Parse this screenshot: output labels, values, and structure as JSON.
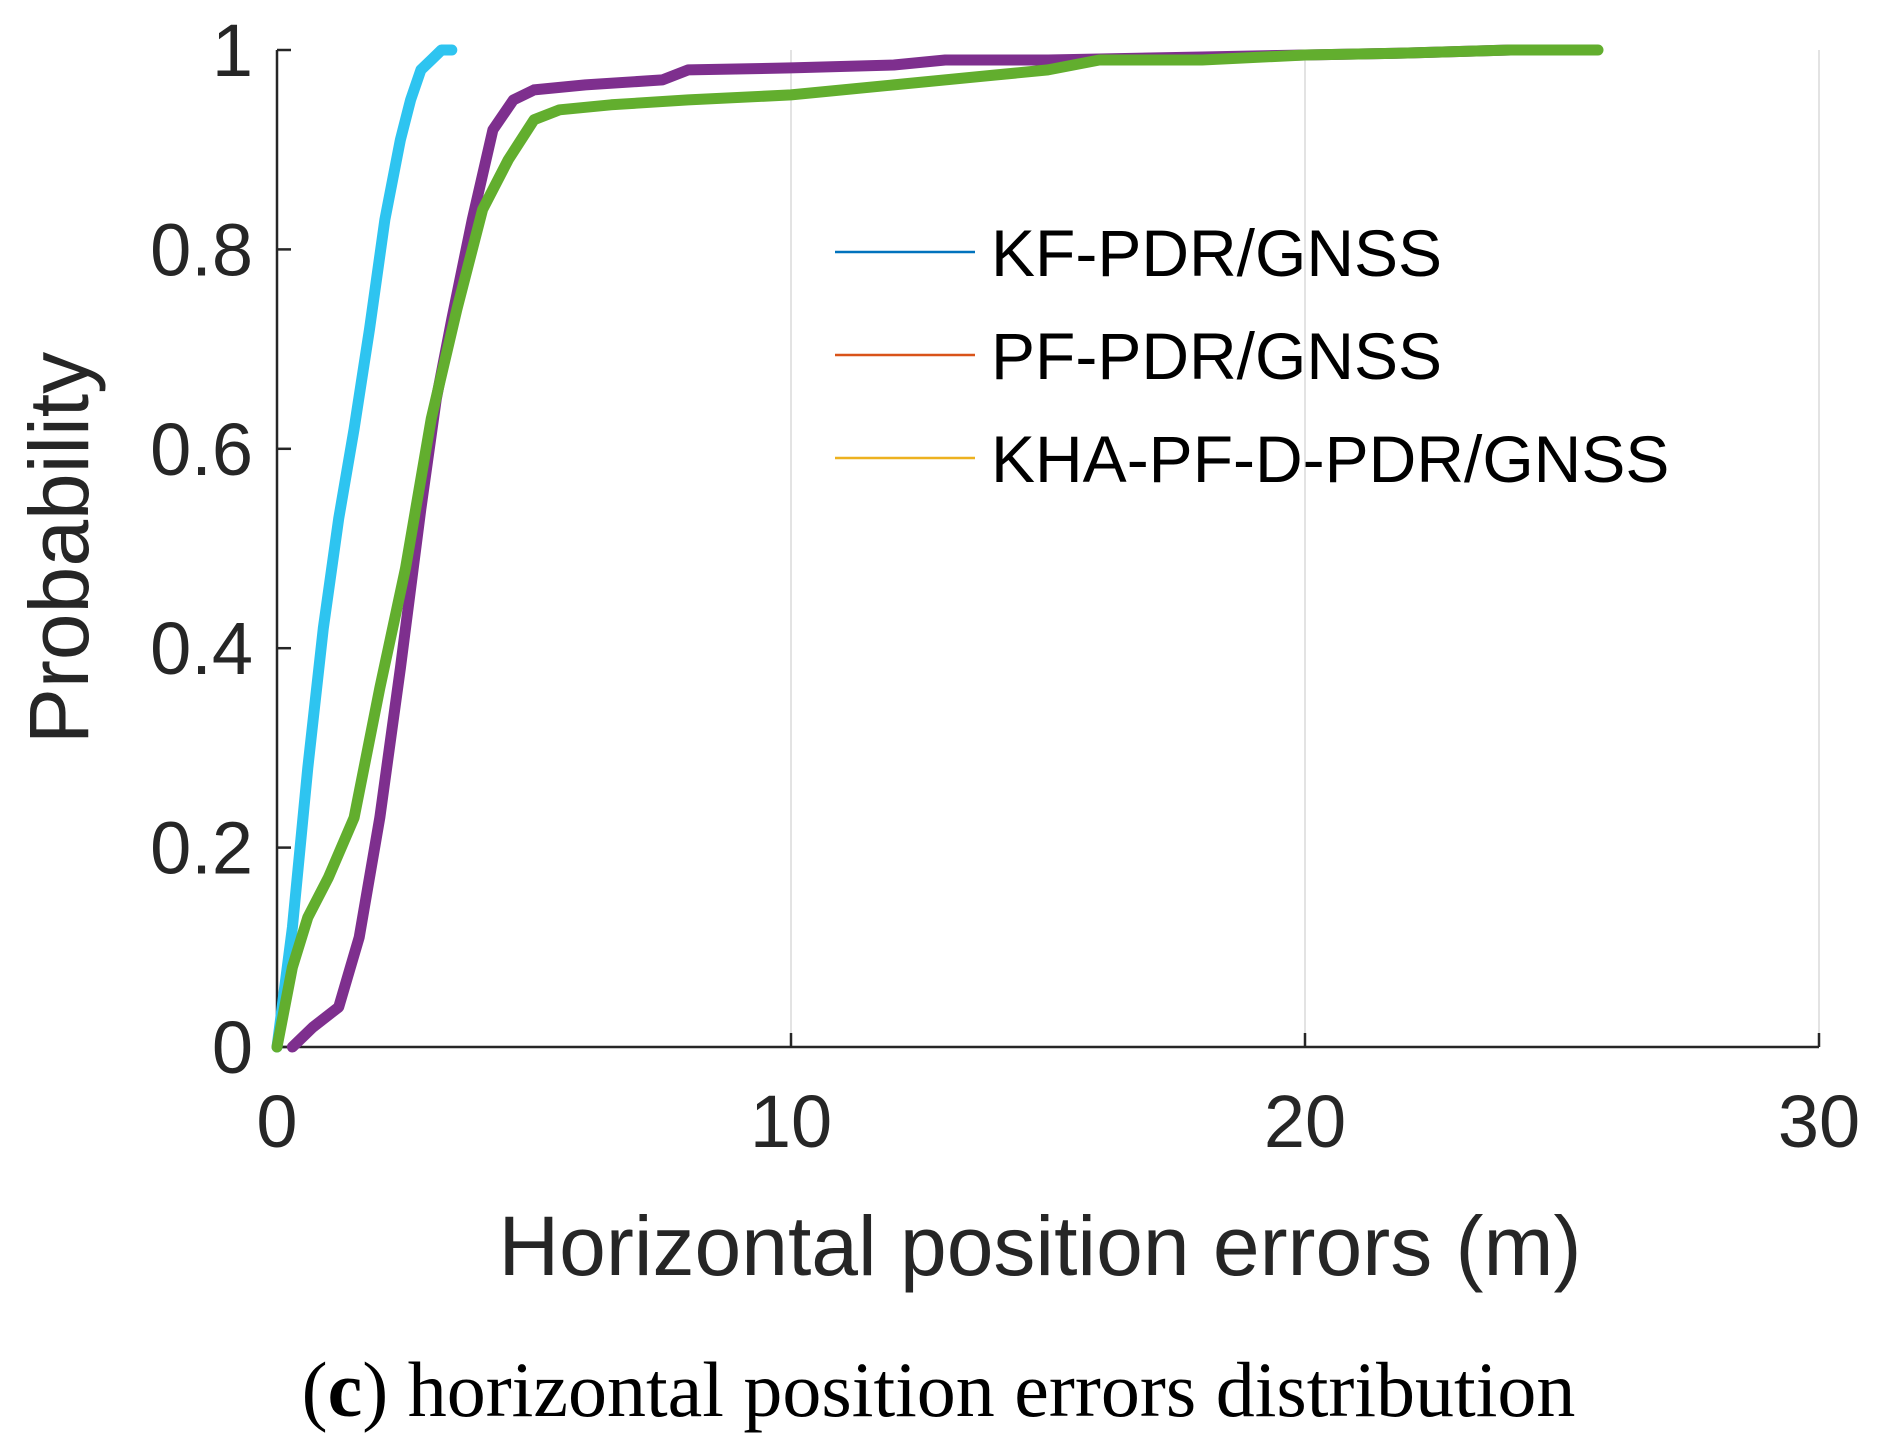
{
  "chart_data": {
    "type": "line",
    "title": "",
    "xlabel": "Horizontal position errors (m)",
    "ylabel": "Probability",
    "xlim": [
      0,
      30
    ],
    "ylim": [
      0,
      1
    ],
    "xticks": [
      0,
      10,
      20,
      30
    ],
    "yticks": [
      0,
      0.2,
      0.4,
      0.6,
      0.8,
      1
    ],
    "xtick_labels": [
      "0",
      "10",
      "20",
      "30"
    ],
    "ytick_labels": [
      "0",
      "0.2",
      "0.4",
      "0.6",
      "0.8",
      "1"
    ],
    "grid": "vertical",
    "legend_position": "right",
    "series": [
      {
        "name": "KF-PDR/GNSS",
        "legend_color": "#0072BD",
        "color": "#2EC4F0",
        "x": [
          0,
          0.3,
          0.6,
          0.9,
          1.2,
          1.5,
          1.8,
          2.1,
          2.4,
          2.6,
          2.8,
          3.0,
          3.2,
          3.4
        ],
        "y": [
          0,
          0.12,
          0.28,
          0.42,
          0.53,
          0.62,
          0.72,
          0.83,
          0.91,
          0.95,
          0.98,
          0.99,
          1.0,
          1.0
        ]
      },
      {
        "name": "PF-PDR/GNSS",
        "legend_color": "#D95319",
        "color": "#7E2F8E",
        "x": [
          0.3,
          0.7,
          1.2,
          1.6,
          2.0,
          2.4,
          2.8,
          3.1,
          3.4,
          3.8,
          4.2,
          4.6,
          5.0,
          6.0,
          7.5,
          8.0,
          10.0,
          12.0,
          13.0,
          15.0,
          18.0,
          20.0,
          22.0,
          24.0,
          25.5
        ],
        "y": [
          0,
          0.02,
          0.04,
          0.11,
          0.23,
          0.38,
          0.54,
          0.65,
          0.73,
          0.83,
          0.92,
          0.95,
          0.96,
          0.965,
          0.97,
          0.98,
          0.982,
          0.985,
          0.99,
          0.99,
          0.993,
          0.995,
          0.997,
          1.0,
          1.0
        ]
      },
      {
        "name": "KHA-PF-D-PDR/GNSS",
        "legend_color": "#EDB120",
        "color": "#62AE2E",
        "x": [
          0,
          0.3,
          0.6,
          1.0,
          1.5,
          2.0,
          2.5,
          3.0,
          3.5,
          4.0,
          4.5,
          5.0,
          5.5,
          6.5,
          8.0,
          10.0,
          12.0,
          14.0,
          15.0,
          16.0,
          18.0,
          20.0,
          22.0,
          24.0,
          25.7
        ],
        "y": [
          0,
          0.08,
          0.13,
          0.17,
          0.23,
          0.36,
          0.48,
          0.63,
          0.74,
          0.84,
          0.89,
          0.93,
          0.94,
          0.945,
          0.95,
          0.955,
          0.965,
          0.975,
          0.98,
          0.99,
          0.99,
          0.995,
          0.997,
          1.0,
          1.0
        ]
      }
    ]
  },
  "caption": {
    "label": "c",
    "open": "(",
    "close": ")",
    "text": " horizontal position errors distribution"
  }
}
